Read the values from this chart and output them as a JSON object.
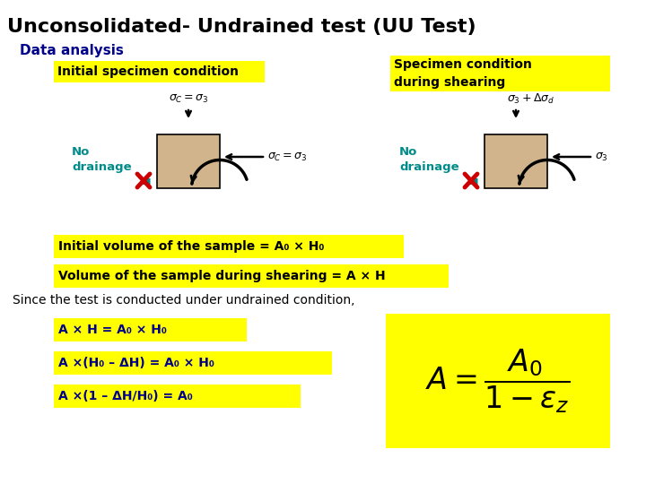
{
  "title": "Unconsolidated- Undrained test (UU Test)",
  "bg_color": "#ffffff",
  "yellow": "#FFFF00",
  "tan": "#D2B48C",
  "dark_blue": "#00008B",
  "teal": "#008B8B",
  "red": "#CC0000",
  "black": "#000000",
  "data_analysis_text": "Data analysis",
  "initial_box_text": "Initial specimen condition",
  "specimen_box_text": "Specimen condition\nduring shearing",
  "initial_vol_text": "Initial volume of the sample = A₀ × H₀",
  "shearing_vol_text": "Volume of the sample during shearing = A × H",
  "since_text": "Since the test is conducted under undrained condition,",
  "eq1_text": "A × H = A₀ × H₀",
  "eq2_text": "A ×(H₀ – ΔH) = A₀ × H₀",
  "eq3_text": "A ×(1 – ΔH/H₀) = A₀"
}
